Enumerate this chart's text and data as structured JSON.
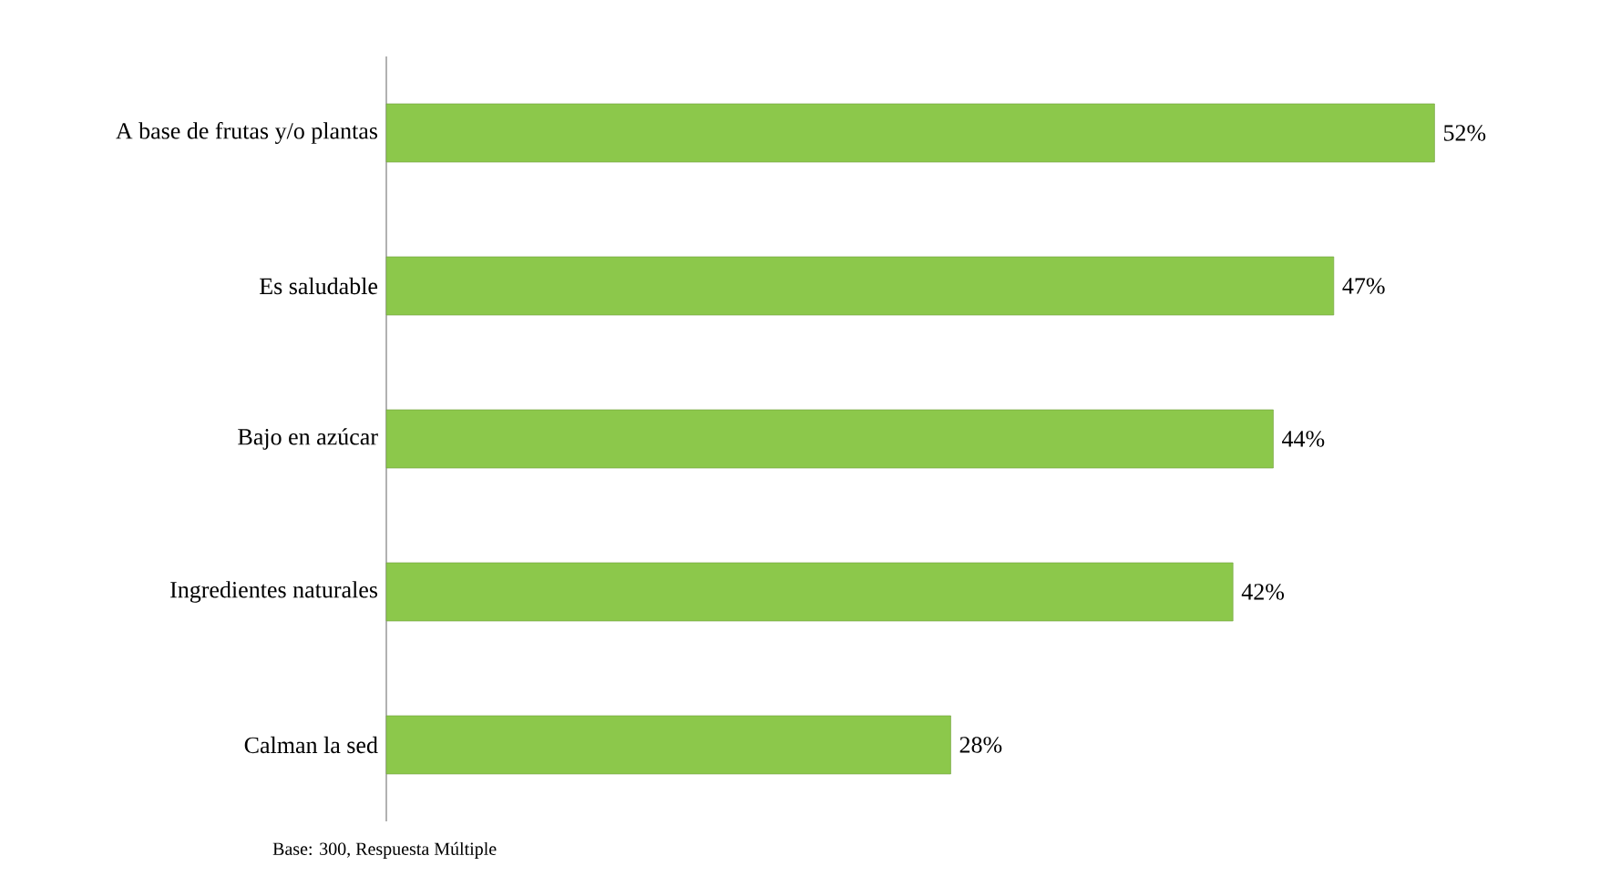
{
  "chart_data": {
    "type": "bar",
    "orientation": "horizontal",
    "categories": [
      "A base de frutas y/o plantas",
      "Es saludable",
      "Bajo en azúcar",
      "Ingredientes naturales",
      "Calman la sed"
    ],
    "values": [
      52,
      47,
      44,
      42,
      28
    ],
    "value_labels": [
      "52%",
      "47%",
      "44%",
      "42%",
      "28%"
    ],
    "color": "#8cc84b",
    "annotations": [
      "Base: 300, Respuesta Múltiple"
    ]
  }
}
